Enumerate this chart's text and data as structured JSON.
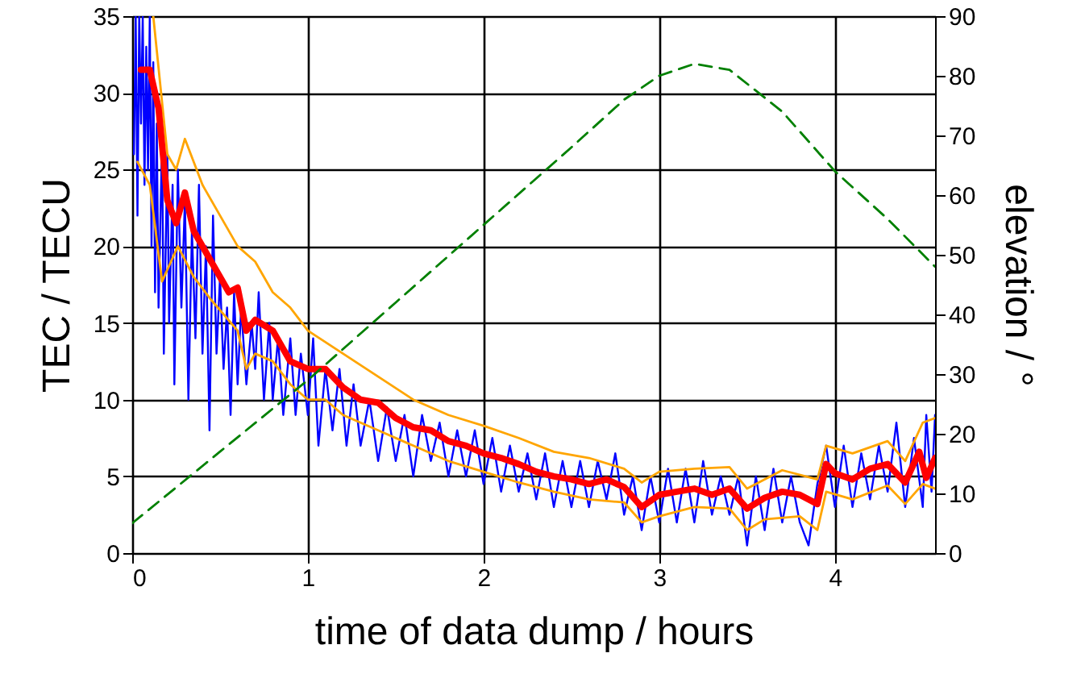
{
  "chart_data": {
    "type": "line",
    "xlabel": "time of data dump / hours",
    "ylabel": "TEC / TECU",
    "y2label": "elevation / °",
    "xlim": [
      0,
      4.57
    ],
    "xticks": [
      0,
      1,
      2,
      3,
      4
    ],
    "ylim": [
      0,
      35
    ],
    "yticks": [
      0,
      5,
      10,
      15,
      20,
      25,
      30,
      35
    ],
    "y2lim": [
      0,
      90
    ],
    "y2ticks": [
      0,
      10,
      20,
      30,
      40,
      50,
      60,
      70,
      80,
      90
    ],
    "grid": true,
    "series": [
      {
        "type": "line",
        "color": "#0000ff",
        "x": [
          0.01,
          0.02,
          0.03,
          0.04,
          0.05,
          0.06,
          0.07,
          0.08,
          0.09,
          0.1,
          0.11,
          0.12,
          0.13,
          0.14,
          0.15,
          0.17,
          0.18,
          0.2,
          0.21,
          0.23,
          0.24,
          0.26,
          0.28,
          0.3,
          0.32,
          0.34,
          0.36,
          0.38,
          0.4,
          0.42,
          0.44,
          0.46,
          0.48,
          0.5,
          0.52,
          0.54,
          0.56,
          0.58,
          0.6,
          0.62,
          0.65,
          0.68,
          0.7,
          0.72,
          0.75,
          0.78,
          0.8,
          0.83,
          0.86,
          0.9,
          0.93,
          0.96,
          1.0,
          1.03,
          1.06,
          1.1,
          1.14,
          1.18,
          1.22,
          1.26,
          1.3,
          1.35,
          1.4,
          1.45,
          1.5,
          1.55,
          1.6,
          1.65,
          1.7,
          1.75,
          1.8,
          1.85,
          1.9,
          1.95,
          2.0,
          2.05,
          2.1,
          2.15,
          2.2,
          2.25,
          2.3,
          2.35,
          2.4,
          2.45,
          2.5,
          2.55,
          2.6,
          2.65,
          2.7,
          2.75,
          2.8,
          2.85,
          2.9,
          2.95,
          3.0,
          3.05,
          3.1,
          3.15,
          3.2,
          3.25,
          3.3,
          3.35,
          3.4,
          3.45,
          3.5,
          3.55,
          3.6,
          3.65,
          3.7,
          3.75,
          3.8,
          3.85,
          3.9,
          3.95,
          4.0,
          4.05,
          4.1,
          4.15,
          4.2,
          4.25,
          4.3,
          4.35,
          4.4,
          4.45,
          4.5,
          4.52,
          4.55,
          4.57
        ],
        "values": [
          26,
          35,
          22,
          35,
          28,
          35,
          24,
          33,
          25,
          35,
          20,
          32,
          17,
          28,
          16,
          27,
          13,
          26,
          15,
          24,
          11,
          25,
          16,
          23,
          10,
          21,
          14,
          24,
          13,
          20,
          8,
          22,
          13,
          18,
          12,
          16,
          9,
          17,
          11,
          16,
          11,
          15,
          12,
          17,
          10,
          15,
          10,
          14,
          9,
          14,
          9,
          13,
          9,
          14,
          7,
          12,
          8,
          12,
          7,
          11,
          7,
          10,
          6,
          9.5,
          6,
          9,
          5,
          9,
          6,
          8.5,
          5,
          8,
          5,
          8,
          4.5,
          7.5,
          4,
          7,
          4,
          6.5,
          3.5,
          6.5,
          3,
          6,
          3,
          6,
          3,
          6,
          3.5,
          6.5,
          2.5,
          5,
          1.5,
          5,
          2,
          5.5,
          2,
          5.5,
          2,
          6,
          2.5,
          5,
          2.5,
          5,
          0.5,
          5,
          1.5,
          5.5,
          2,
          5,
          2,
          0.5,
          4.5,
          7,
          3,
          7,
          3,
          6.5,
          3.5,
          7,
          4,
          8.5,
          3,
          7.5,
          3,
          9,
          4,
          9
        ]
      },
      {
        "type": "line",
        "color": "#ffa500",
        "x": [
          0.12,
          0.2,
          0.25,
          0.3,
          0.4,
          0.5,
          0.6,
          0.7,
          0.8,
          0.9,
          1.0,
          1.2,
          1.4,
          1.6,
          1.8,
          2.0,
          2.2,
          2.4,
          2.6,
          2.8,
          2.9,
          3.0,
          3.2,
          3.4,
          3.5,
          3.7,
          3.9,
          3.95,
          4.1,
          4.3,
          4.4,
          4.5,
          4.57
        ],
        "values": [
          35,
          26,
          25,
          27,
          24,
          22,
          20,
          19,
          17,
          16,
          14.5,
          13,
          11.5,
          10,
          9,
          8.3,
          7.5,
          6.6,
          6.2,
          5.5,
          4.6,
          5.3,
          5.5,
          5.6,
          4.2,
          5.4,
          4.8,
          7,
          6.5,
          7.3,
          6,
          8.5,
          8.8
        ]
      },
      {
        "type": "line",
        "color": "#ffa500",
        "x": [
          0.03,
          0.1,
          0.17,
          0.26,
          0.35,
          0.45,
          0.6,
          0.65,
          0.7,
          0.8,
          0.9,
          1.0,
          1.1,
          1.2,
          1.4,
          1.6,
          1.8,
          2.0,
          2.2,
          2.4,
          2.6,
          2.8,
          2.9,
          3.0,
          3.2,
          3.4,
          3.5,
          3.6,
          3.8,
          3.9,
          3.95,
          4.1,
          4.3,
          4.4,
          4.5,
          4.57
        ],
        "values": [
          25.5,
          24,
          17.7,
          20,
          18,
          16.5,
          14.5,
          12,
          13,
          12.5,
          11,
          10,
          10,
          9,
          8,
          7,
          6,
          5.3,
          4.6,
          4,
          3.5,
          3.3,
          2,
          2.4,
          3,
          2.9,
          1.5,
          2.2,
          2.4,
          1.5,
          4,
          3.5,
          4.4,
          3.2,
          4.5,
          4.2
        ]
      },
      {
        "type": "line",
        "color": "#ff0000",
        "x": [
          0.05,
          0.1,
          0.15,
          0.2,
          0.25,
          0.3,
          0.35,
          0.45,
          0.55,
          0.6,
          0.65,
          0.7,
          0.8,
          0.9,
          1.0,
          1.1,
          1.2,
          1.3,
          1.4,
          1.5,
          1.6,
          1.7,
          1.8,
          1.9,
          2.0,
          2.1,
          2.2,
          2.3,
          2.4,
          2.5,
          2.6,
          2.7,
          2.8,
          2.9,
          3.0,
          3.1,
          3.2,
          3.3,
          3.4,
          3.5,
          3.6,
          3.7,
          3.8,
          3.9,
          3.95,
          4.0,
          4.1,
          4.2,
          4.3,
          4.4,
          4.48,
          4.52,
          4.57
        ],
        "values": [
          31.5,
          31.5,
          29,
          23,
          21.5,
          23.5,
          21,
          19,
          17,
          17.3,
          14.5,
          15.2,
          14.5,
          12.5,
          12,
          12,
          10.8,
          10,
          9.8,
          8.8,
          8.2,
          8,
          7.3,
          7,
          6.5,
          6.2,
          5.8,
          5.3,
          5,
          4.8,
          4.5,
          4.8,
          4.3,
          3,
          3.8,
          4,
          4.2,
          3.8,
          4.2,
          2.9,
          3.6,
          4,
          3.8,
          3.2,
          5.8,
          5.2,
          4.8,
          5.5,
          5.8,
          4.6,
          6.6,
          4.9,
          6.2
        ]
      },
      {
        "type": "line",
        "color": "#008000",
        "axis": "y2",
        "line_style": "dashed",
        "x": [
          0,
          0.5,
          1,
          1.5,
          2,
          2.5,
          2.8,
          3,
          3.2,
          3.4,
          3.7,
          4,
          4.3,
          4.57
        ],
        "values": [
          5,
          17,
          29,
          42,
          55,
          68,
          76,
          80,
          82,
          81,
          74,
          64,
          56,
          48
        ]
      }
    ]
  }
}
